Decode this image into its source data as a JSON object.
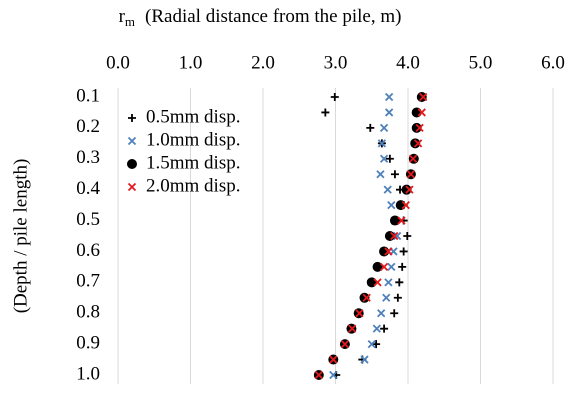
{
  "chart_data": {
    "type": "scatter",
    "x_label_symbol": "r",
    "x_label_subscript": "m",
    "x_label": "(Radial distance from the pile, m)",
    "y_label": "(Depth / pile length)",
    "x_axis_position": "top",
    "xlim": [
      0,
      6
    ],
    "xticks": [
      {
        "value": 0,
        "label": "0.0"
      },
      {
        "value": 1,
        "label": "1.0"
      },
      {
        "value": 2,
        "label": "2.0"
      },
      {
        "value": 3,
        "label": "3.0"
      },
      {
        "value": 4,
        "label": "4.0"
      },
      {
        "value": 5,
        "label": "5.0"
      },
      {
        "value": 6,
        "label": "6.0"
      }
    ],
    "ylim": [
      1,
      0.1
    ],
    "yticks": [
      0.1,
      0.2,
      0.3,
      0.4,
      0.5,
      0.6,
      0.7,
      0.8,
      0.9,
      {
        "value": 1,
        "label": "1.0"
      }
    ],
    "grid": true,
    "legend": "top-left",
    "y": [
      0.1,
      0.15,
      0.2,
      0.25,
      0.3,
      0.35,
      0.4,
      0.45,
      0.5,
      0.55,
      0.6,
      0.65,
      0.7,
      0.75,
      0.8,
      0.85,
      0.9,
      0.95,
      1
    ],
    "series": [
      {
        "name": "0.5mm disp.",
        "color": "#000000",
        "marker": "plus",
        "x": [
          2.99,
          2.86,
          3.48,
          3.64,
          3.75,
          3.82,
          3.89,
          3.94,
          3.94,
          3.99,
          3.94,
          3.92,
          3.88,
          3.86,
          3.81,
          3.67,
          3.56,
          3.37,
          3.01
        ]
      },
      {
        "name": "1.0mm disp.",
        "color": "#4f81bd",
        "marker": "cross",
        "x": [
          3.74,
          3.74,
          3.67,
          3.64,
          3.67,
          3.62,
          3.72,
          3.77,
          3.82,
          3.85,
          3.8,
          3.77,
          3.73,
          3.7,
          3.63,
          3.57,
          3.5,
          3.4,
          2.97
        ]
      },
      {
        "name": "1.5mm disp.",
        "color": "#000000",
        "marker": "circle",
        "x": [
          4.19,
          4.12,
          4.12,
          4.1,
          4.08,
          4.04,
          3.98,
          3.9,
          3.82,
          3.75,
          3.67,
          3.58,
          3.5,
          3.4,
          3.32,
          3.22,
          3.13,
          2.97,
          2.77
        ]
      },
      {
        "name": "2.0mm disp.",
        "color": "#e41a1c",
        "marker": "cross",
        "x": [
          4.21,
          4.19,
          4.16,
          4.14,
          4.07,
          4.04,
          4.02,
          3.97,
          3.91,
          3.81,
          3.73,
          3.67,
          3.58,
          3.43,
          3.33,
          3.23,
          3.13,
          2.97,
          2.77
        ]
      }
    ]
  }
}
